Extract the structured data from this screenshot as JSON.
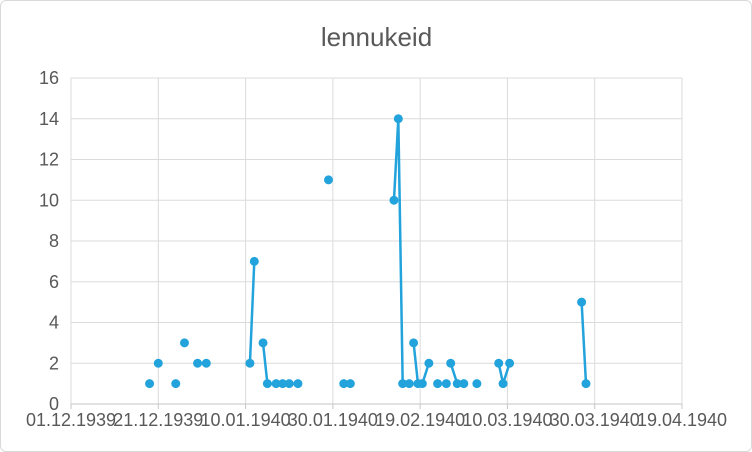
{
  "window": {
    "background": "#FFFFFF",
    "border_color": "#D9D9D9"
  },
  "chart_data": {
    "type": "line",
    "title": "lennukeid",
    "title_color": "#595959",
    "series_color": "#22A3DC",
    "grid_color": "#DBDBDB",
    "axis_color": "#C6C6C6",
    "label_color": "#595959",
    "grid": true,
    "legend": false,
    "x_axis": {
      "tick_labels": [
        "01.12.1939",
        "21.12.1939",
        "10.01.1940",
        "30.01.1940",
        "19.02.1940",
        "10.03.1940",
        "30.03.1940",
        "19.04.1940"
      ],
      "tick_days": [
        0,
        20,
        40,
        60,
        80,
        100,
        120,
        140
      ],
      "range_days": [
        0,
        140
      ]
    },
    "y_axis": {
      "min": 0,
      "max": 16,
      "step": 2,
      "tick_labels": [
        "0",
        "2",
        "4",
        "6",
        "8",
        "10",
        "12",
        "14",
        "16"
      ]
    },
    "series": [
      {
        "name": "lennukeid",
        "segments": [
          [
            [
              18,
              1
            ]
          ],
          [
            [
              20,
              2
            ]
          ],
          [
            [
              24,
              1
            ]
          ],
          [
            [
              26,
              3
            ]
          ],
          [
            [
              29,
              2
            ],
            [
              31,
              2
            ]
          ],
          [
            [
              41,
              2
            ],
            [
              42,
              7
            ]
          ],
          [
            [
              44,
              3
            ],
            [
              45,
              1
            ],
            [
              47,
              1
            ],
            [
              48.5,
              1
            ],
            [
              50,
              1
            ],
            [
              52,
              1
            ]
          ],
          [
            [
              59,
              11
            ]
          ],
          [
            [
              62.5,
              1
            ],
            [
              64,
              1
            ]
          ],
          [
            [
              74,
              10
            ],
            [
              75,
              14
            ],
            [
              76,
              1
            ]
          ],
          [
            [
              77.5,
              1
            ]
          ],
          [
            [
              78.5,
              3
            ],
            [
              79.5,
              1
            ]
          ],
          [
            [
              80.5,
              1
            ],
            [
              82,
              2
            ]
          ],
          [
            [
              84,
              1
            ]
          ],
          [
            [
              86,
              1
            ]
          ],
          [
            [
              87,
              2
            ],
            [
              88.5,
              1
            ]
          ],
          [
            [
              90,
              1
            ]
          ],
          [
            [
              93,
              1
            ]
          ],
          [
            [
              98,
              2
            ],
            [
              99,
              1
            ],
            [
              100.5,
              2
            ]
          ],
          [
            [
              117,
              5
            ],
            [
              118,
              1
            ]
          ]
        ]
      }
    ]
  }
}
